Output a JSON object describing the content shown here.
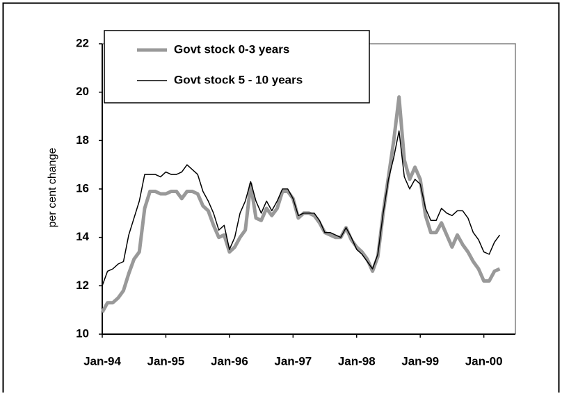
{
  "chart_data": {
    "type": "line",
    "y_label": "per cent change",
    "categories": [
      "Jan-94",
      null,
      null,
      null,
      null,
      null,
      null,
      null,
      null,
      null,
      null,
      null,
      "Jan-95",
      null,
      null,
      null,
      null,
      null,
      null,
      null,
      null,
      null,
      null,
      null,
      "Jan-96",
      null,
      null,
      null,
      null,
      null,
      null,
      null,
      null,
      null,
      null,
      null,
      "Jan-97",
      null,
      null,
      null,
      null,
      null,
      null,
      null,
      null,
      null,
      null,
      null,
      "Jan-98",
      null,
      null,
      null,
      null,
      null,
      null,
      null,
      null,
      null,
      null,
      null,
      "Jan-99",
      null,
      null,
      null,
      null,
      null,
      null,
      null,
      null,
      null,
      null,
      null,
      "Jan-00",
      null,
      null,
      null
    ],
    "series": [
      {
        "name": "Govt stock 0-3 years",
        "color": "#999999",
        "width": 5,
        "values": [
          10.9,
          11.3,
          11.3,
          11.5,
          11.8,
          12.5,
          13.1,
          13.4,
          15.2,
          15.9,
          15.9,
          15.8,
          15.8,
          15.9,
          15.9,
          15.6,
          15.9,
          15.9,
          15.8,
          15.3,
          15.1,
          14.5,
          14.0,
          14.1,
          13.4,
          13.6,
          14.0,
          14.3,
          16.2,
          14.8,
          14.7,
          15.2,
          14.9,
          15.2,
          15.9,
          15.9,
          15.6,
          14.8,
          15.0,
          15.0,
          14.9,
          14.6,
          14.2,
          14.1,
          14.0,
          14.0,
          14.4,
          13.9,
          13.6,
          13.4,
          13.1,
          12.6,
          13.2,
          15.0,
          16.5,
          18.0,
          19.8,
          17.2,
          16.4,
          16.9,
          16.4,
          14.9,
          14.2,
          14.2,
          14.6,
          14.1,
          13.6,
          14.1,
          13.7,
          13.4,
          13.0,
          12.7,
          12.2,
          12.2,
          12.6,
          12.7
        ]
      },
      {
        "name": "Govt stock 5 - 10 years",
        "color": "#000000",
        "width": 1.5,
        "values": [
          12.0,
          12.6,
          12.7,
          12.9,
          13.0,
          14.1,
          14.8,
          15.5,
          16.6,
          16.6,
          16.6,
          16.5,
          16.7,
          16.6,
          16.6,
          16.7,
          17.0,
          16.8,
          16.6,
          15.9,
          15.5,
          15.0,
          14.3,
          14.5,
          13.5,
          14.0,
          15.0,
          15.5,
          16.3,
          15.5,
          15.0,
          15.5,
          15.1,
          15.5,
          16.0,
          16.0,
          15.6,
          14.9,
          15.0,
          15.0,
          15.0,
          14.7,
          14.2,
          14.2,
          14.1,
          14.0,
          14.4,
          14.0,
          13.5,
          13.3,
          13.0,
          12.7,
          13.3,
          15.0,
          16.4,
          17.3,
          18.4,
          16.5,
          16.0,
          16.4,
          16.2,
          15.2,
          14.7,
          14.7,
          15.2,
          15.0,
          14.9,
          15.1,
          15.1,
          14.8,
          14.2,
          13.9,
          13.4,
          13.3,
          13.8,
          14.1
        ]
      }
    ],
    "ylim": [
      10,
      22
    ],
    "yticks": [
      10,
      12,
      14,
      16,
      18,
      20,
      22
    ]
  }
}
